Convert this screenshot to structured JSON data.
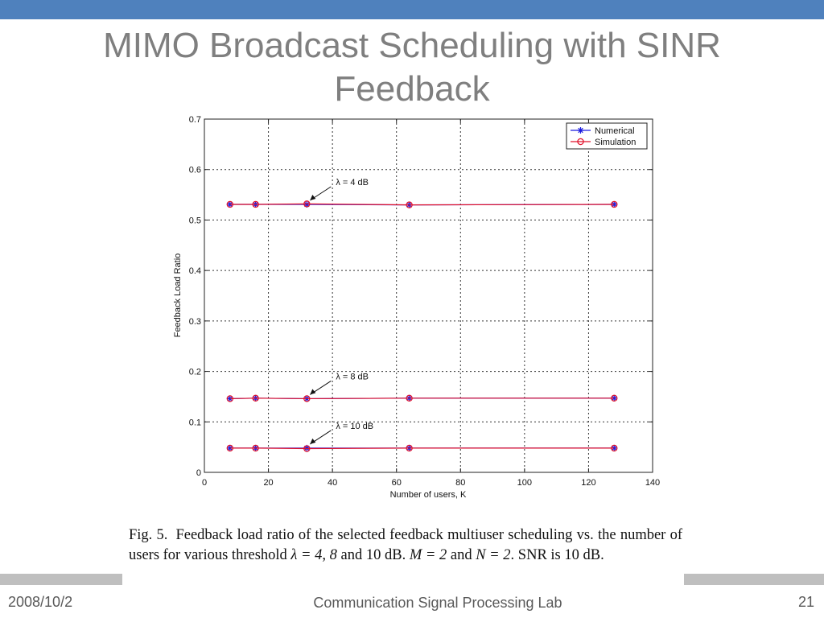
{
  "slide": {
    "title_line1": "MIMO Broadcast Scheduling with SINR",
    "title_line2": "Feedback",
    "footer_date": "2008/10/2",
    "footer_center": "Communication Signal Processing Lab",
    "page_number": "21",
    "accent_color": "#4f81bd",
    "footer_bar_color": "#bfbfbf"
  },
  "caption": {
    "fig_label": "Fig. 5.",
    "text_part1": "Feedback load ratio of the selected feedback multiuser scheduling vs. the number of users for various threshold ",
    "lambda_expr": "λ = 4, 8",
    "text_part2": " and 10 dB. ",
    "m_expr": "M = 2",
    "text_part3": " and ",
    "n_expr": "N = 2",
    "text_part4": ". SNR is 10 dB."
  },
  "chart_data": {
    "type": "line",
    "title": "",
    "xlabel": "Number of users, K",
    "ylabel": "Feedback Load Ratio",
    "xlim": [
      0,
      140
    ],
    "ylim": [
      0,
      0.7
    ],
    "xticks": [
      0,
      20,
      40,
      60,
      80,
      100,
      120,
      140
    ],
    "yticks": [
      0,
      0.1,
      0.2,
      0.3,
      0.4,
      0.5,
      0.6,
      0.7
    ],
    "xtick_labels": [
      "0",
      "20",
      "40",
      "60",
      "80",
      "100",
      "120",
      "140"
    ],
    "ytick_labels": [
      "0",
      "0.1",
      "0.2",
      "0.3",
      "0.4",
      "0.5",
      "0.6",
      "0.7"
    ],
    "grid": true,
    "legend_position": "top-right",
    "x": [
      8,
      16,
      32,
      64,
      128
    ],
    "series": [
      {
        "name": "Numerical",
        "group": "λ = 4 dB",
        "color": "#1a1adf",
        "marker": "star",
        "values": [
          0.531,
          0.531,
          0.531,
          0.53,
          0.531
        ]
      },
      {
        "name": "Simulation",
        "group": "λ = 4 dB",
        "color": "#e0102a",
        "marker": "circle",
        "values": [
          0.531,
          0.531,
          0.532,
          0.53,
          0.531
        ]
      },
      {
        "name": "Numerical",
        "group": "λ = 8 dB",
        "color": "#1a1adf",
        "marker": "star",
        "values": [
          0.146,
          0.147,
          0.146,
          0.147,
          0.147
        ]
      },
      {
        "name": "Simulation",
        "group": "λ = 8 dB",
        "color": "#e0102a",
        "marker": "circle",
        "values": [
          0.146,
          0.147,
          0.146,
          0.147,
          0.147
        ]
      },
      {
        "name": "Numerical",
        "group": "λ = 10 dB",
        "color": "#1a1adf",
        "marker": "star",
        "values": [
          0.048,
          0.048,
          0.048,
          0.048,
          0.048
        ]
      },
      {
        "name": "Simulation",
        "group": "λ = 10 dB",
        "color": "#e0102a",
        "marker": "circle",
        "values": [
          0.048,
          0.048,
          0.047,
          0.048,
          0.048
        ]
      }
    ],
    "legend": [
      {
        "label": "Numerical",
        "color": "#1a1adf",
        "marker": "star"
      },
      {
        "label": "Simulation",
        "color": "#e0102a",
        "marker": "circle"
      }
    ],
    "annotations": [
      {
        "text": "λ = 4 dB",
        "x": 32,
        "y": 0.531
      },
      {
        "text": "λ = 8 dB",
        "x": 32,
        "y": 0.146
      },
      {
        "text": "λ = 10 dB",
        "x": 32,
        "y": 0.048
      }
    ]
  }
}
